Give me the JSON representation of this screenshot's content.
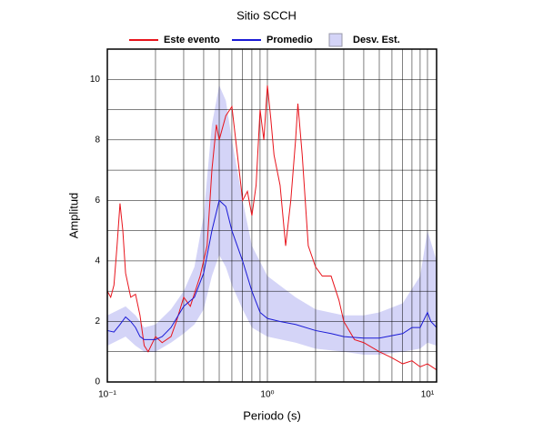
{
  "chart_data": {
    "type": "line",
    "title": "Sitio SCCH",
    "xlabel": "Periodo (s)",
    "ylabel": "Amplitud",
    "xscale": "log",
    "xlim": [
      0.1,
      11.4
    ],
    "ylim": [
      0,
      11
    ],
    "xticks": [
      {
        "value": 0.1,
        "label": "10⁻¹"
      },
      {
        "value": 1,
        "label": "10⁰"
      },
      {
        "value": 10,
        "label": "10¹"
      }
    ],
    "yticks": [
      0,
      2,
      4,
      6,
      8,
      10
    ],
    "xminor": [
      0.2,
      0.3,
      0.4,
      0.5,
      0.6,
      0.7,
      0.8,
      0.9,
      2,
      3,
      4,
      5,
      6,
      7,
      8,
      9
    ],
    "yminor": [
      1,
      3,
      5,
      7,
      9
    ],
    "grid": true,
    "legend": "top",
    "series": [
      {
        "name": "Este evento",
        "color": "#e8141c",
        "x": [
          0.1,
          0.105,
          0.11,
          0.115,
          0.12,
          0.125,
          0.13,
          0.14,
          0.15,
          0.16,
          0.17,
          0.18,
          0.2,
          0.22,
          0.25,
          0.27,
          0.3,
          0.33,
          0.38,
          0.42,
          0.45,
          0.48,
          0.5,
          0.55,
          0.6,
          0.65,
          0.7,
          0.75,
          0.8,
          0.85,
          0.9,
          0.95,
          1.0,
          1.05,
          1.1,
          1.2,
          1.3,
          1.4,
          1.5,
          1.55,
          1.65,
          1.8,
          2.0,
          2.2,
          2.5,
          2.8,
          3.0,
          3.5,
          4,
          5,
          6,
          7,
          8,
          9,
          10,
          11.4
        ],
        "values": [
          3.0,
          2.8,
          3.2,
          4.5,
          5.9,
          5.0,
          3.6,
          2.8,
          2.9,
          2.2,
          1.2,
          1.0,
          1.5,
          1.3,
          1.5,
          2.0,
          2.8,
          2.5,
          3.5,
          4.5,
          7.0,
          8.5,
          8.0,
          8.8,
          9.1,
          7.5,
          6.0,
          6.3,
          5.5,
          6.5,
          9.0,
          8.0,
          9.8,
          8.7,
          7.5,
          6.5,
          4.5,
          6.0,
          8.0,
          9.2,
          7.5,
          4.5,
          3.8,
          3.5,
          3.5,
          2.7,
          2.0,
          1.4,
          1.3,
          1.0,
          0.8,
          0.6,
          0.7,
          0.5,
          0.6,
          0.4
        ]
      },
      {
        "name": "Promedio",
        "color": "#1a1ad6",
        "x": [
          0.1,
          0.11,
          0.12,
          0.13,
          0.14,
          0.15,
          0.16,
          0.17,
          0.2,
          0.22,
          0.25,
          0.3,
          0.35,
          0.4,
          0.45,
          0.5,
          0.55,
          0.6,
          0.7,
          0.8,
          0.9,
          1.0,
          1.2,
          1.5,
          2,
          2.5,
          3,
          4,
          5,
          7,
          8,
          9,
          10,
          10.5,
          11.4
        ],
        "values": [
          1.7,
          1.65,
          1.9,
          2.15,
          2.0,
          1.8,
          1.5,
          1.4,
          1.4,
          1.5,
          1.8,
          2.5,
          2.8,
          3.6,
          5.0,
          6.0,
          5.8,
          5.0,
          4.0,
          3.0,
          2.3,
          2.1,
          2.0,
          1.9,
          1.7,
          1.6,
          1.5,
          1.45,
          1.45,
          1.6,
          1.8,
          1.8,
          2.3,
          2.0,
          1.8
        ]
      },
      {
        "name": "Desv. Est.",
        "color": "#d4d4f7",
        "type": "band",
        "x": [
          0.1,
          0.13,
          0.15,
          0.17,
          0.2,
          0.25,
          0.3,
          0.35,
          0.4,
          0.45,
          0.5,
          0.55,
          0.6,
          0.7,
          0.8,
          1.0,
          1.5,
          2,
          3,
          4,
          5,
          7,
          9,
          10,
          11.4
        ],
        "lower": [
          1.2,
          1.5,
          1.2,
          1.0,
          1.0,
          1.3,
          1.6,
          1.9,
          2.4,
          3.5,
          4.2,
          3.8,
          3.2,
          2.4,
          1.8,
          1.5,
          1.3,
          1.1,
          1.0,
          0.9,
          0.9,
          1.0,
          1.1,
          1.3,
          1.2
        ],
        "upper": [
          2.2,
          2.5,
          2.2,
          1.8,
          1.9,
          2.4,
          3.0,
          3.8,
          5.5,
          8.5,
          9.8,
          9.3,
          8.0,
          6.0,
          4.5,
          3.5,
          2.8,
          2.4,
          2.2,
          2.2,
          2.3,
          2.6,
          3.5,
          5.0,
          4.0
        ]
      }
    ]
  }
}
